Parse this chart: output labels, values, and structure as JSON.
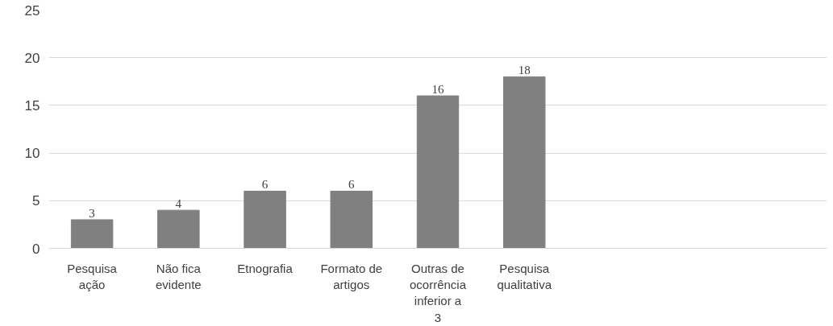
{
  "chart_data": {
    "type": "bar",
    "categories": [
      "Pesquisa ação",
      "Não fica evidente",
      "Etnografia",
      "Formato de artigos",
      "Outras de ocorrência inferior a 3",
      "Pesquisa qualitativa"
    ],
    "values": [
      3,
      4,
      6,
      6,
      16,
      18
    ],
    "color": "#808080",
    "ylim": [
      0,
      25
    ],
    "yticks": [
      0,
      5,
      10,
      15,
      20,
      25
    ],
    "grid": "y",
    "data_labels": true
  }
}
